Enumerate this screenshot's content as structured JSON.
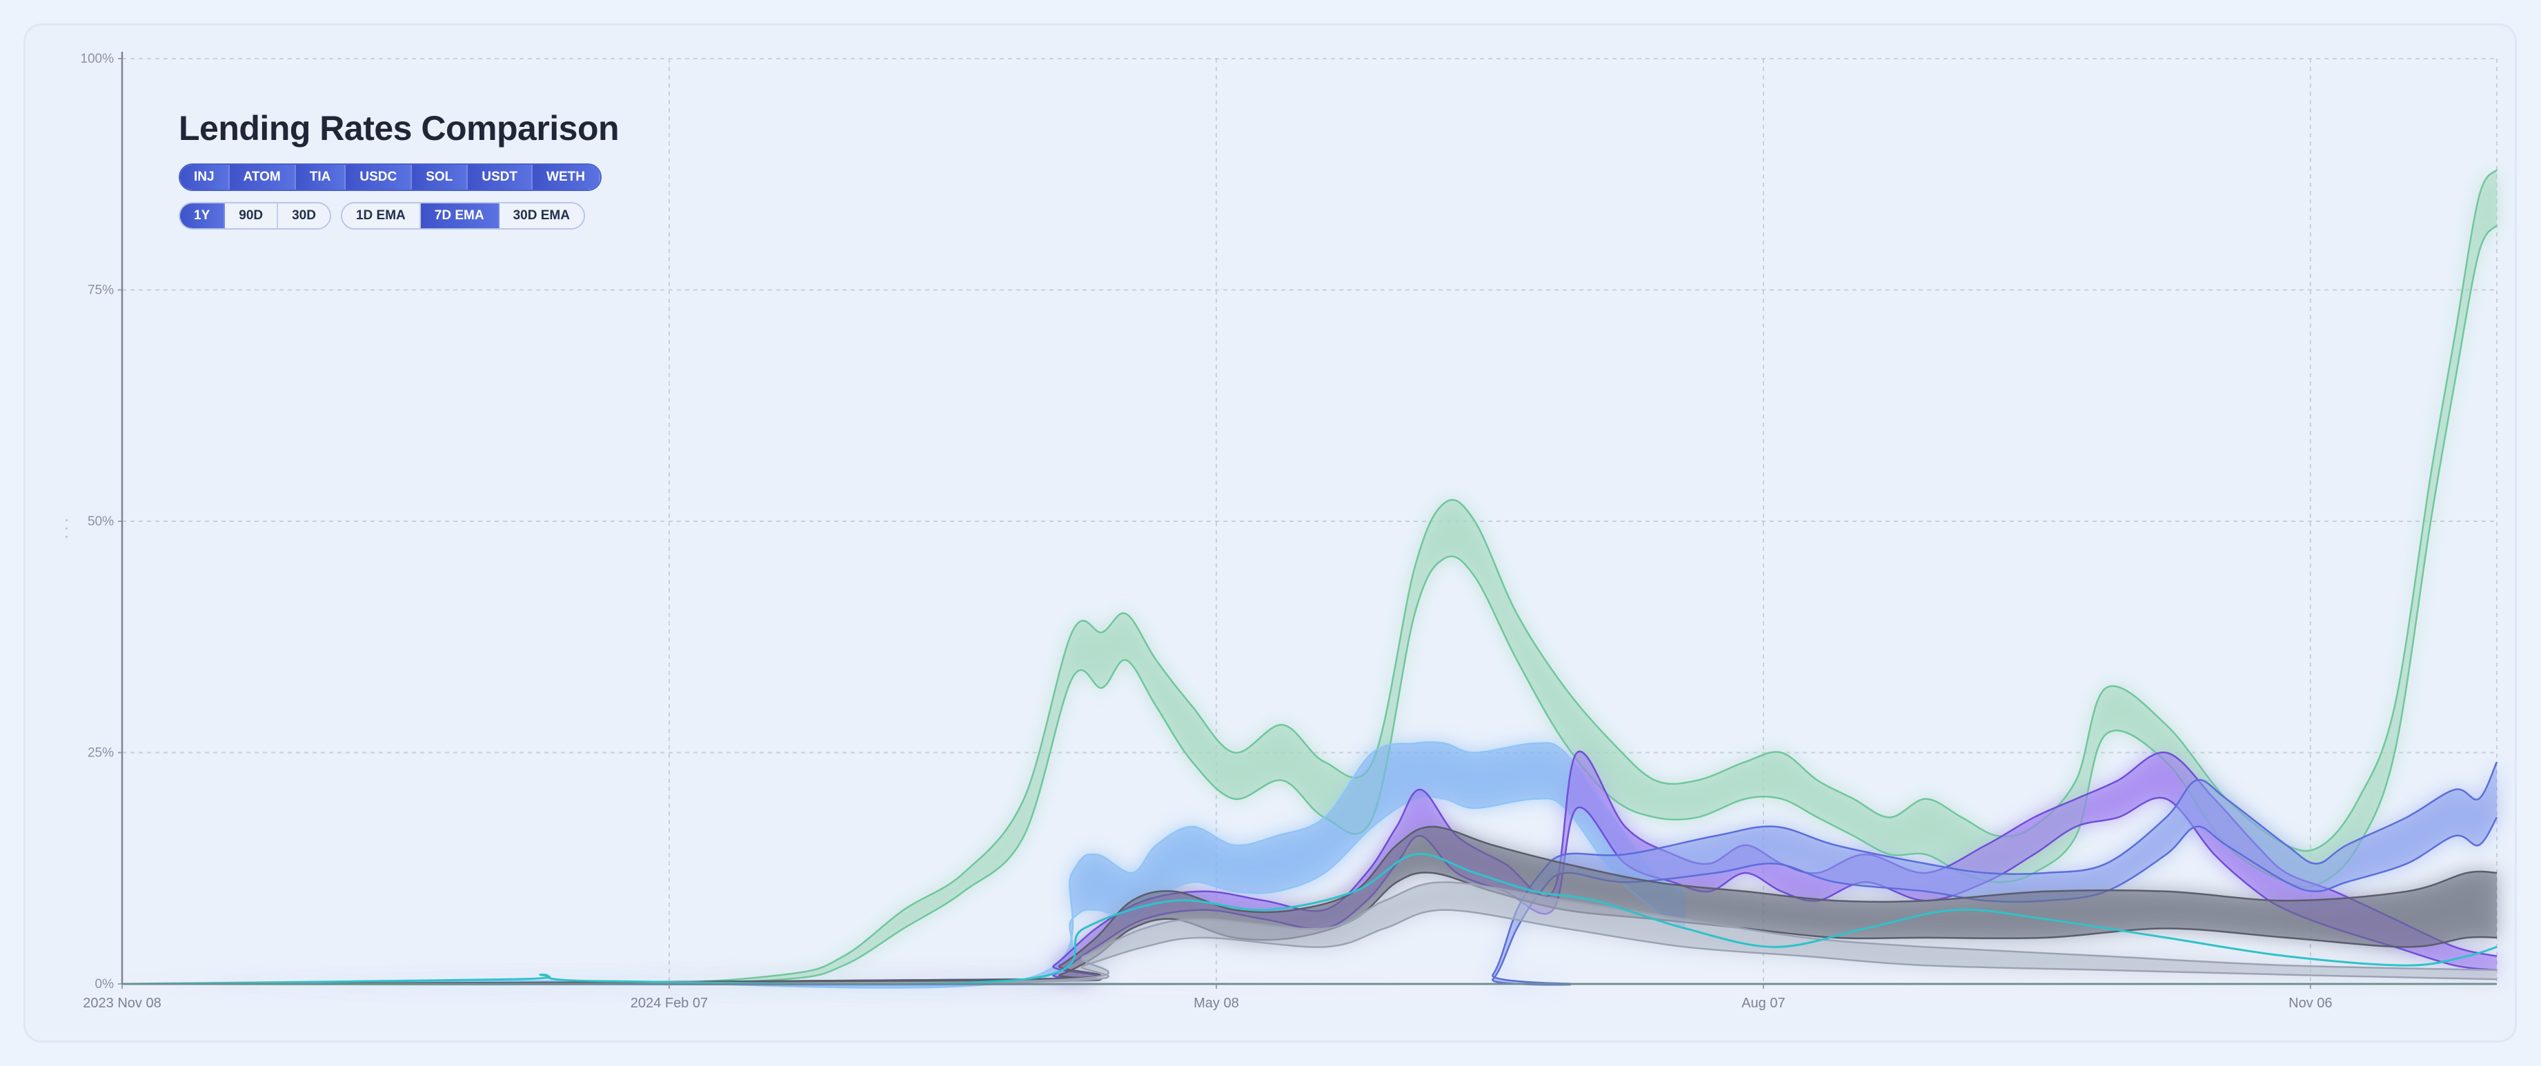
{
  "chart_data": {
    "type": "area",
    "title": "Lending Rates Comparison",
    "y_ticks": [
      "0%",
      "25%",
      "50%",
      "75%",
      "100%"
    ],
    "x_ticks": [
      "2023 Nov 08",
      "2024 Feb 07",
      "May 08",
      "Aug 07",
      "Nov 06"
    ],
    "ylim": [
      0,
      100
    ],
    "xlim": [
      0,
      395
    ],
    "x_tick_days": [
      0,
      91,
      182,
      273,
      364
    ],
    "grid": true,
    "series": [
      {
        "color": "#6fc79c",
        "fill": "#a6d8bf",
        "x": [
          0,
          80,
          110,
          120,
          130,
          140,
          150,
          158,
          163,
          167,
          172,
          178,
          185,
          193,
          200,
          208,
          215,
          220,
          225,
          232,
          240,
          248,
          255,
          262,
          270,
          276,
          282,
          288,
          294,
          300,
          306,
          312,
          318,
          325,
          330,
          340,
          350,
          360,
          366,
          372,
          378,
          384,
          388,
          392,
          395
        ],
        "upper": [
          0,
          0,
          1,
          3,
          8,
          12,
          20,
          38,
          38,
          40,
          35,
          30,
          25,
          28,
          24,
          24,
          45,
          52,
          50,
          40,
          32,
          26,
          22,
          22,
          24,
          25,
          22,
          20,
          18,
          20,
          18,
          16,
          17,
          22,
          32,
          28,
          20,
          15,
          15,
          20,
          30,
          55,
          70,
          85,
          88
        ],
        "lower": [
          0,
          0,
          0.5,
          2,
          6,
          10,
          16,
          33,
          32,
          35,
          30,
          24,
          20,
          22,
          18,
          18,
          40,
          46,
          44,
          35,
          26,
          20,
          18,
          18,
          20,
          20,
          18,
          16,
          14,
          14,
          12,
          11,
          12,
          16,
          27,
          24,
          15,
          11,
          11,
          15,
          25,
          50,
          65,
          79,
          82
        ]
      },
      {
        "color": "#8fc5f7",
        "fill": "#7fb3f2",
        "x": [
          0,
          65,
          80,
          150,
          158,
          162,
          168,
          172,
          178,
          185,
          192,
          200,
          208,
          215,
          220,
          225,
          235,
          240,
          248,
          255,
          260
        ],
        "upper": [
          0,
          0.3,
          0.3,
          0.5,
          12,
          14,
          12,
          15,
          17,
          15,
          16,
          18,
          25,
          26,
          26,
          25,
          26,
          25,
          18,
          12,
          10
        ],
        "lower": [
          0,
          0.2,
          0.2,
          0.3,
          7,
          8,
          7,
          9,
          11,
          10,
          10,
          12,
          17,
          20,
          20,
          19,
          20,
          19,
          12,
          8,
          6
        ]
      },
      {
        "color": "#6e4fd8",
        "fill": "#9a78ef",
        "x": [
          0,
          150,
          155,
          162,
          170,
          180,
          190,
          200,
          207,
          212,
          216,
          222,
          230,
          238,
          242,
          250,
          258,
          264,
          270,
          276,
          282,
          290,
          300,
          310,
          318,
          325,
          332,
          340,
          348,
          355,
          360,
          368,
          378,
          388,
          395
        ],
        "upper": [
          0,
          0.5,
          2,
          6,
          9,
          10,
          9,
          8,
          12,
          17,
          21,
          16,
          13,
          10,
          25,
          17,
          14,
          13,
          15,
          13,
          12,
          14,
          12,
          15,
          18,
          20,
          22,
          25,
          20,
          15,
          12,
          10,
          7,
          4,
          3
        ],
        "lower": [
          0,
          0.3,
          1,
          4,
          7,
          8,
          7,
          6,
          9,
          13,
          16,
          12,
          10,
          8,
          19,
          13,
          11,
          10,
          12,
          10,
          9,
          11,
          9,
          11,
          14,
          17,
          18,
          20,
          14,
          10,
          8,
          6,
          4,
          2,
          1.5
        ]
      },
      {
        "color": "#5b6ed9",
        "fill": "#8aa0ec",
        "x": [
          0,
          223,
          228,
          232,
          236,
          240,
          250,
          265,
          275,
          285,
          300,
          310,
          320,
          330,
          340,
          345,
          350,
          360,
          365,
          370,
          380,
          388,
          392,
          395
        ],
        "upper": [
          0,
          0,
          1,
          8,
          12,
          14,
          14,
          16,
          17,
          15,
          13,
          12,
          12,
          13,
          18,
          22,
          20,
          15,
          13,
          15,
          18,
          21,
          20,
          24
        ],
        "lower": [
          0,
          0,
          0.5,
          6,
          10,
          12,
          11,
          12,
          13,
          11,
          10,
          9,
          9,
          10,
          14,
          17,
          15,
          11,
          10,
          11,
          13,
          16,
          15,
          18
        ]
      },
      {
        "color": "#5a5d6c",
        "fill": "#6b6f80",
        "x": [
          0,
          150,
          156,
          162,
          168,
          175,
          185,
          195,
          205,
          212,
          218,
          228,
          240,
          255,
          270,
          285,
          300,
          320,
          340,
          360,
          380,
          390,
          395
        ],
        "upper": [
          0,
          0.5,
          2,
          5,
          9,
          10,
          8,
          8,
          10,
          15,
          17,
          15,
          13,
          11,
          10,
          9,
          9,
          10,
          10,
          9,
          10,
          12,
          12
        ],
        "lower": [
          0,
          0.3,
          1,
          3,
          6,
          7,
          5,
          5,
          7,
          11,
          12,
          10,
          8,
          7,
          6,
          5,
          5,
          5,
          6,
          5,
          4,
          5,
          5
        ]
      },
      {
        "color": "#9aa2b4",
        "fill": "#b5bccb",
        "x": [
          0,
          150,
          160,
          170,
          180,
          200,
          210,
          220,
          240,
          260,
          280,
          300,
          330,
          360,
          395
        ],
        "upper": [
          0,
          0.3,
          3,
          6,
          7,
          6,
          9,
          11,
          9,
          7,
          5,
          4,
          3,
          2,
          1.5
        ],
        "lower": [
          0,
          0.2,
          2,
          4,
          5,
          4,
          6,
          8,
          6,
          4,
          3,
          2,
          1.5,
          1,
          0.5
        ]
      },
      {
        "color": "#2fc2c9",
        "fill": "none",
        "x": [
          0,
          65,
          70,
          80,
          150,
          160,
          175,
          190,
          205,
          215,
          225,
          235,
          245,
          260,
          275,
          290,
          305,
          320,
          340,
          360,
          380,
          390,
          395
        ],
        "upper": [
          0,
          0.5,
          1,
          0.3,
          0.5,
          6,
          9,
          8,
          10,
          14,
          12,
          10,
          9,
          6,
          4,
          6,
          8,
          7,
          5,
          3,
          2,
          3,
          4
        ],
        "lower": null
      },
      {
        "color": "#4ccf8a",
        "fill": "none",
        "x": [
          0,
          395
        ],
        "upper": [
          0,
          0
        ],
        "lower": null
      }
    ]
  },
  "controls": {
    "assets": [
      {
        "label": "INJ",
        "active": true
      },
      {
        "label": "ATOM",
        "active": true
      },
      {
        "label": "TIA",
        "active": true
      },
      {
        "label": "USDC",
        "active": true
      },
      {
        "label": "SOL",
        "active": true
      },
      {
        "label": "USDT",
        "active": true
      },
      {
        "label": "WETH",
        "active": true
      }
    ],
    "ranges": [
      {
        "label": "1Y",
        "active": true
      },
      {
        "label": "90D",
        "active": false
      },
      {
        "label": "30D",
        "active": false
      }
    ],
    "smoothing": [
      {
        "label": "1D EMA",
        "active": false
      },
      {
        "label": "7D EMA",
        "active": true
      },
      {
        "label": "30D EMA",
        "active": false
      }
    ]
  }
}
